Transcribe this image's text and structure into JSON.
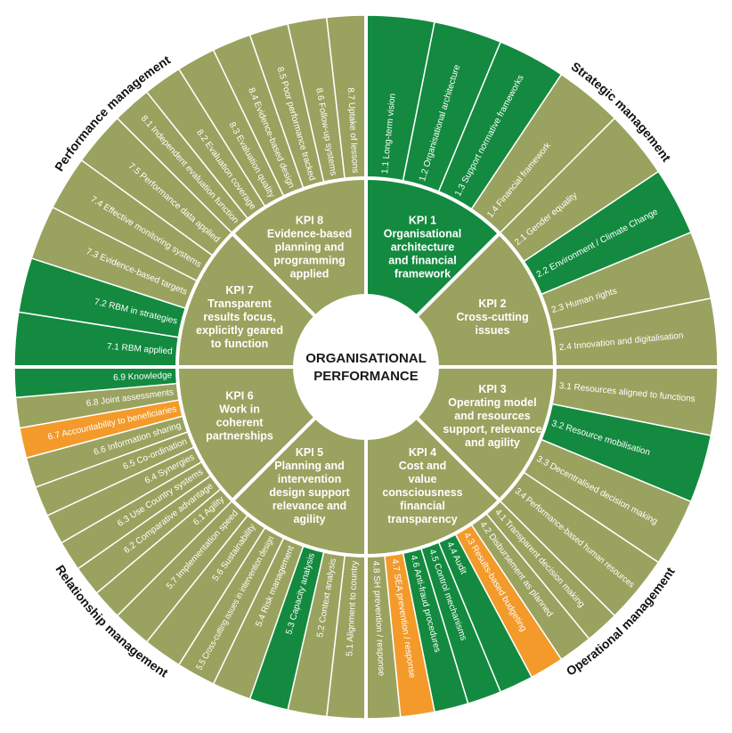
{
  "colors": {
    "olive": "#9aa25f",
    "green": "#138a3f",
    "orange": "#f39a2b",
    "separator": "#ffffff",
    "text_dark": "#111111"
  },
  "center": {
    "lines": [
      "ORGANISATIONAL",
      "PERFORMANCE"
    ]
  },
  "quadrants": [
    {
      "name": "Strategic management"
    },
    {
      "name": "Operational management"
    },
    {
      "name": "Relationship management"
    },
    {
      "name": "Performance management"
    }
  ],
  "kpis": [
    {
      "id": "kpi-1",
      "color": "green",
      "lines": [
        "KPI 1",
        "Organisational",
        "architecture",
        "and financial",
        "framework"
      ],
      "items": [
        {
          "label": "1.1 Long-term vision",
          "color": "green"
        },
        {
          "label": "1.2 Organisational architecture",
          "color": "green"
        },
        {
          "label": "1.3 Support normative frameworks",
          "color": "green"
        },
        {
          "label": "1.4 Financial framework",
          "color": "olive"
        }
      ]
    },
    {
      "id": "kpi-2",
      "color": "olive",
      "lines": [
        "KPI 2",
        "Cross-cutting",
        "issues"
      ],
      "items": [
        {
          "label": "2.1 Gender equality",
          "color": "olive"
        },
        {
          "label": "2.2 Environment / Climate Change",
          "color": "green"
        },
        {
          "label": "2.3 Human rights",
          "color": "olive"
        },
        {
          "label": "2.4 Innovation and digitalisation",
          "color": "olive"
        }
      ]
    },
    {
      "id": "kpi-3",
      "color": "olive",
      "lines": [
        "KPI 3",
        "Operating model",
        "and resources",
        "support, relevance",
        "and agility"
      ],
      "items": [
        {
          "label": "3.1 Resources aligned to functions",
          "color": "olive"
        },
        {
          "label": "3.2 Resource mobilisation",
          "color": "green"
        },
        {
          "label": "3.3 Decentralised decision making",
          "color": "olive"
        },
        {
          "label": "3.4 Performance-based human resources",
          "color": "olive"
        }
      ]
    },
    {
      "id": "kpi-4",
      "color": "olive",
      "lines": [
        "KPI 4",
        "Cost and",
        "value",
        "consciousness",
        "financial",
        "transparency"
      ],
      "items": [
        {
          "label": "4.1 Transparent decision making",
          "color": "olive"
        },
        {
          "label": "4.2 Disbursement as planned",
          "color": "olive"
        },
        {
          "label": "4.3 Results-based budgeting",
          "color": "orange"
        },
        {
          "label": "4.4 Audit",
          "color": "green"
        },
        {
          "label": "4.5 Control mechanisms",
          "color": "green"
        },
        {
          "label": "4.6 Anti-fraud procedures",
          "color": "green"
        },
        {
          "label": "4.7 SEA prevention / response",
          "color": "orange"
        },
        {
          "label": "4.8 SH prevention / response",
          "color": "olive"
        }
      ]
    },
    {
      "id": "kpi-5",
      "color": "olive",
      "lines": [
        "KPI 5",
        "Planning and",
        "intervention",
        "design support",
        "relevance and",
        "agility"
      ],
      "items": [
        {
          "label": "5.1 Alignment to country",
          "color": "olive"
        },
        {
          "label": "5.2 Context analysis",
          "color": "olive"
        },
        {
          "label": "5.3 Capacity analysis",
          "color": "green"
        },
        {
          "label": "5.4 Risk management",
          "color": "olive"
        },
        {
          "label": "5.5 Cross-cutting issues in intervention design",
          "color": "olive"
        },
        {
          "label": "5.6 Sustainability",
          "color": "olive"
        },
        {
          "label": "5.7 Implementation speed",
          "color": "olive"
        }
      ]
    },
    {
      "id": "kpi-6",
      "color": "olive",
      "lines": [
        "KPI 6",
        "Work in",
        "coherent",
        "partnerships"
      ],
      "items": [
        {
          "label": "6.1 Agility",
          "color": "olive"
        },
        {
          "label": "6.2 Comparative advantage",
          "color": "olive"
        },
        {
          "label": "6.3 Use Country systems",
          "color": "olive"
        },
        {
          "label": "6.4 Synergies",
          "color": "olive"
        },
        {
          "label": "6.5 Co-ordination",
          "color": "olive"
        },
        {
          "label": "6.6 Information sharing",
          "color": "olive"
        },
        {
          "label": "6.7 Accountability to beneficiaries",
          "color": "orange"
        },
        {
          "label": "6.8 Joint assessments",
          "color": "olive"
        },
        {
          "label": "6.9 Knowledge",
          "color": "green"
        }
      ]
    },
    {
      "id": "kpi-7",
      "color": "olive",
      "lines": [
        "KPI 7",
        "Transparent",
        "results focus,",
        "explicitly geared",
        "to function"
      ],
      "items": [
        {
          "label": "7.1 RBM applied",
          "color": "green"
        },
        {
          "label": "7.2 RBM in strategies",
          "color": "green"
        },
        {
          "label": "7.3 Evidence-based targets",
          "color": "olive"
        },
        {
          "label": "7.4 Effective monitoring systems",
          "color": "olive"
        },
        {
          "label": "7.5 Performance data applied",
          "color": "olive"
        }
      ]
    },
    {
      "id": "kpi-8",
      "color": "olive",
      "lines": [
        "KPI 8",
        "Evidence-based",
        "planning and",
        "programming",
        "applied"
      ],
      "items": [
        {
          "label": "8.1 Independent evaluation function",
          "color": "olive"
        },
        {
          "label": "8.2 Evaluation coverage",
          "color": "olive"
        },
        {
          "label": "8.3 Evaluation quality",
          "color": "olive"
        },
        {
          "label": "8.4 Evidence-based design",
          "color": "olive"
        },
        {
          "label": "8.5 Poor performance tracked",
          "color": "olive"
        },
        {
          "label": "8.6 Follow-up systems",
          "color": "olive"
        },
        {
          "label": "8.7 Uptake of lessons",
          "color": "olive"
        }
      ]
    }
  ]
}
